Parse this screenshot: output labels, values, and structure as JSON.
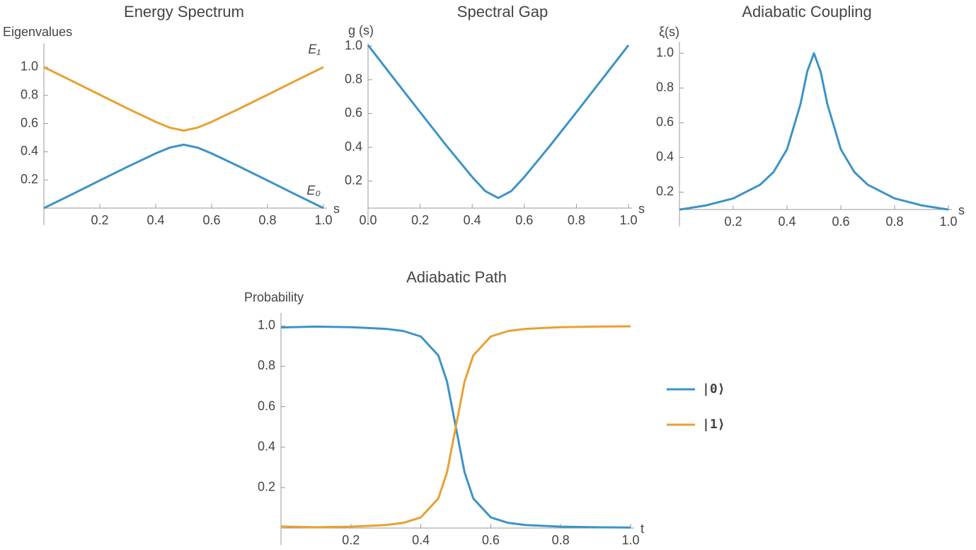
{
  "chart_data": [
    {
      "type": "line",
      "title": "Energy Spectrum",
      "ylabel": "Eigenvalues",
      "xlabel": "s",
      "legend": "line-end",
      "x": [
        0,
        0.1,
        0.2,
        0.3,
        0.4,
        0.45,
        0.5,
        0.55,
        0.6,
        0.7,
        0.8,
        0.9,
        1
      ],
      "series": [
        {
          "name": "E₁",
          "color": "#e9a032",
          "values": [
            1.0,
            0.903,
            0.804,
            0.706,
            0.612,
            0.571,
            0.55,
            0.571,
            0.612,
            0.706,
            0.804,
            0.903,
            1.0
          ]
        },
        {
          "name": "E₀",
          "color": "#3d93c6",
          "values": [
            0.0,
            0.097,
            0.196,
            0.294,
            0.388,
            0.429,
            0.45,
            0.429,
            0.388,
            0.294,
            0.196,
            0.097,
            0.0
          ]
        }
      ],
      "xlim": [
        0,
        1
      ],
      "ylim": [
        0,
        1.15
      ],
      "xticks": [
        0.2,
        0.4,
        0.6,
        0.8,
        {
          "value": 1,
          "label": "1.0"
        }
      ],
      "yticks": [
        0.2,
        0.4,
        0.6,
        0.8,
        {
          "value": 1,
          "label": "1.0"
        }
      ]
    },
    {
      "type": "line",
      "title": "Spectral Gap",
      "ylabel": "g (s)",
      "xlabel": "s",
      "x": [
        0,
        0.1,
        0.2,
        0.3,
        0.4,
        0.45,
        0.5,
        0.55,
        0.6,
        0.7,
        0.8,
        0.9,
        1
      ],
      "series": [
        {
          "color": "#3d93c6",
          "values": [
            1.005,
            0.806,
            0.608,
            0.412,
            0.224,
            0.141,
            0.1,
            0.141,
            0.224,
            0.412,
            0.608,
            0.806,
            1.005
          ]
        }
      ],
      "xlim": [
        0,
        1
      ],
      "ylim": [
        0.04,
        1.0
      ],
      "xticks": [
        {
          "value": 0,
          "label": "0.0"
        },
        0.2,
        0.4,
        0.6,
        0.8,
        {
          "value": 1,
          "label": "1.0"
        }
      ],
      "yticks": [
        0.2,
        0.4,
        0.6,
        0.8,
        {
          "value": 1,
          "label": "1.0"
        }
      ]
    },
    {
      "type": "line",
      "title": "Adiabatic Coupling",
      "ylabel": "ξ(s)",
      "xlabel": "s",
      "x": [
        0,
        0.1,
        0.2,
        0.3,
        0.35,
        0.4,
        0.45,
        0.475,
        0.5,
        0.525,
        0.55,
        0.6,
        0.65,
        0.7,
        0.8,
        0.9,
        1
      ],
      "series": [
        {
          "color": "#3d93c6",
          "values": [
            0.0995,
            0.124,
            0.164,
            0.243,
            0.316,
            0.447,
            0.707,
            0.894,
            1.0,
            0.894,
            0.707,
            0.447,
            0.316,
            0.243,
            0.164,
            0.124,
            0.0995
          ]
        }
      ],
      "xlim": [
        0,
        1
      ],
      "ylim": [
        0.1,
        1.05
      ],
      "xticks": [
        0.2,
        0.4,
        0.6,
        0.8,
        {
          "value": 1,
          "label": "1.0"
        }
      ],
      "yticks": [
        0.2,
        0.4,
        0.6,
        0.8,
        {
          "value": 1,
          "label": "1.0"
        }
      ]
    },
    {
      "type": "line",
      "title": "Adiabatic Path",
      "ylabel": "Probability",
      "xlabel": "t",
      "legend": "right",
      "x": [
        0,
        0.1,
        0.2,
        0.3,
        0.35,
        0.4,
        0.45,
        0.475,
        0.5,
        0.525,
        0.55,
        0.6,
        0.65,
        0.7,
        0.8,
        0.9,
        1
      ],
      "series": [
        {
          "name": "|0⟩",
          "color": "#3d93c6",
          "values": [
            0.992,
            0.9961,
            0.9932,
            0.985,
            0.9743,
            0.9472,
            0.8536,
            0.7236,
            0.5,
            0.2764,
            0.1464,
            0.0528,
            0.0257,
            0.015,
            0.0068,
            0.0039,
            0.0025
          ]
        },
        {
          "name": "|1⟩",
          "color": "#e9a032",
          "values": [
            0.008,
            0.0039,
            0.0068,
            0.015,
            0.0257,
            0.0528,
            0.1464,
            0.2764,
            0.5,
            0.7236,
            0.8536,
            0.9472,
            0.9743,
            0.985,
            0.9932,
            0.9961,
            0.9975
          ]
        }
      ],
      "xlim": [
        0,
        1
      ],
      "ylim": [
        0,
        1.05
      ],
      "xticks": [
        0.2,
        0.4,
        0.6,
        0.8,
        {
          "value": 1,
          "label": "1.0"
        }
      ],
      "yticks": [
        0.2,
        0.4,
        0.6,
        0.8,
        {
          "value": 1,
          "label": "1.0"
        }
      ]
    }
  ]
}
